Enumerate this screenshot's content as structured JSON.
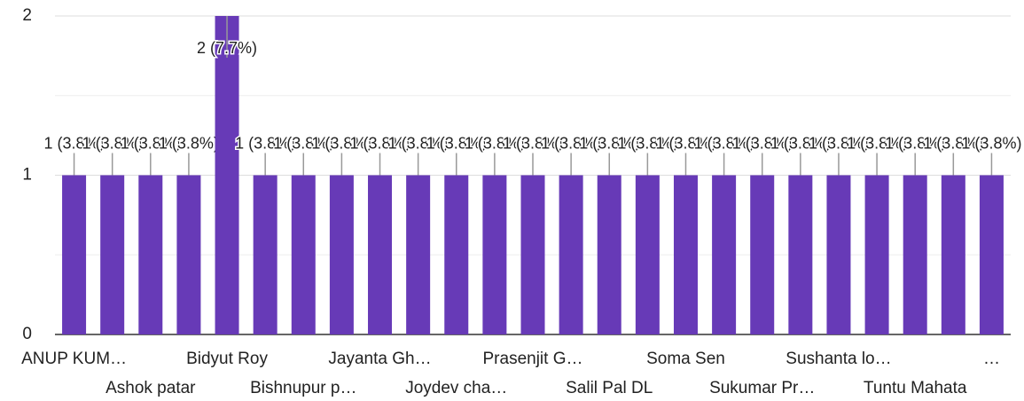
{
  "chart_data": {
    "type": "bar",
    "categories": [
      "ANUP KUM…",
      null,
      "Ashok patar",
      null,
      "Bidyut Roy",
      null,
      "Bishnupur p…",
      null,
      "Jayanta Gh…",
      null,
      "Joydev cha…",
      null,
      "Prasenjit G…",
      null,
      "Salil Pal DL",
      null,
      "Soma Sen",
      null,
      "Sukumar Pr…",
      null,
      "Sushanta lo…",
      null,
      "Tuntu Mahata",
      null,
      "…"
    ],
    "values": [
      1,
      1,
      1,
      1,
      2,
      1,
      1,
      1,
      1,
      1,
      1,
      1,
      1,
      1,
      1,
      1,
      1,
      1,
      1,
      1,
      1,
      1,
      1,
      1,
      1
    ],
    "value_labels": [
      "1 (3.8%)",
      "1 (3.8%)",
      "1 (3.8%)",
      "1 (3.8%)",
      "2 (7.7%)",
      "1 (3.8%)",
      "1 (3.8%)",
      "1 (3.8%)",
      "1 (3.8%)",
      "1 (3.8%)",
      "1 (3.8%)",
      "1 (3.8%)",
      "1 (3.8%)",
      "1 (3.8%)",
      "1 (3.8%)",
      "1 (3.8%)",
      "1 (3.8%)",
      "1 (3.8%)",
      "1 (3.8%)",
      "1 (3.8%)",
      "1 (3.8%)",
      "1 (3.8%)",
      "1 (3.8%)",
      "1 (3.8%)",
      "1 (3.8%)"
    ],
    "color": "#673ab7",
    "ylim": [
      0,
      2
    ],
    "yticks": [
      0,
      1,
      2
    ],
    "minor_yticks": [
      0.5,
      1.5
    ],
    "grid": true
  }
}
